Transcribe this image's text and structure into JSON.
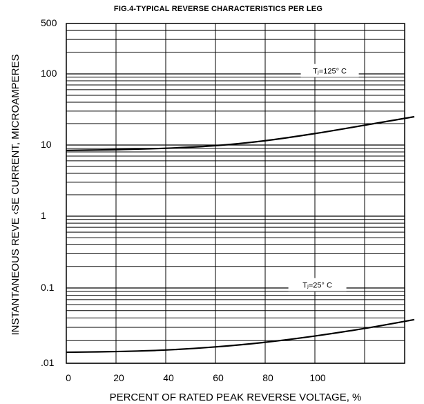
{
  "chart_data": {
    "type": "line",
    "title": "FIG.4-TYPICAL REVERSE CHARACTERISTICS PER LEG",
    "xlabel": "PERCENT OF RATED PEAK REVERSE VOLTAGE, %",
    "ylabel": "INSTANTANEOUS REVE ‹SE CURRENT, MICROAMPERES",
    "xlim": [
      0,
      140
    ],
    "ylim": [
      0.01,
      500
    ],
    "yscale": "log",
    "x_ticks": [
      0,
      20,
      40,
      60,
      80,
      100
    ],
    "x_tick_labels": [
      "0",
      "20",
      "40",
      "60",
      "80",
      "100"
    ],
    "y_ticks": [
      0.01,
      0.1,
      1,
      10,
      100,
      500
    ],
    "y_tick_labels": [
      ".01",
      "0.1",
      "1",
      "10",
      "100",
      "500"
    ],
    "grid": true,
    "series": [
      {
        "name": "Tⱼ=125° C",
        "x": [
          0,
          20,
          40,
          60,
          80,
          100,
          120,
          140
        ],
        "y": [
          8.4,
          8.6,
          9.0,
          9.8,
          11.5,
          14.5,
          19.0,
          25.0
        ]
      },
      {
        "name": "Tⱼ=25° C",
        "x": [
          0,
          20,
          40,
          60,
          80,
          100,
          120,
          140
        ],
        "y": [
          0.014,
          0.0143,
          0.015,
          0.0165,
          0.019,
          0.023,
          0.029,
          0.038
        ]
      }
    ],
    "colors": {
      "curve": "#000000",
      "grid": "#000000"
    }
  }
}
